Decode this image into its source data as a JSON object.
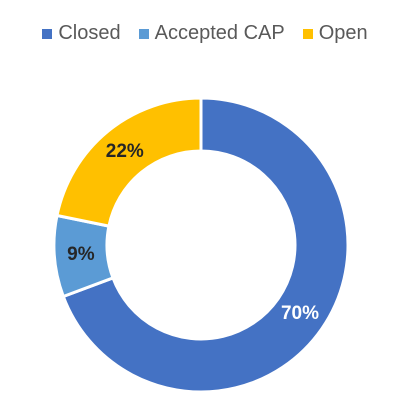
{
  "chart_data": {
    "type": "pie",
    "variant": "donut",
    "title": "",
    "legend_position": "top",
    "series": [
      {
        "name": "Closed",
        "value": 70,
        "label": "70%",
        "color": "#4472C4",
        "label_color": "#FFFFFF"
      },
      {
        "name": "Accepted CAP",
        "value": 9,
        "label": "9%",
        "color": "#5B9BD5",
        "label_color": "#262626"
      },
      {
        "name": "Open",
        "value": 22,
        "label": "22%",
        "color": "#FFC000",
        "label_color": "#262626"
      }
    ]
  }
}
